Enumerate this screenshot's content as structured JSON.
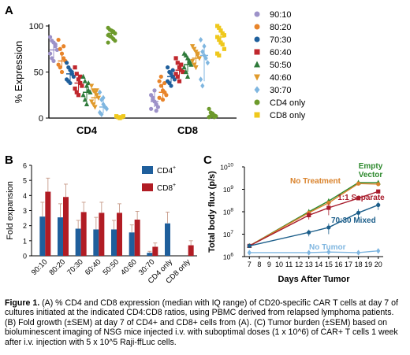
{
  "panel_letters": {
    "a": "A",
    "b": "B",
    "c": "C"
  },
  "caption": {
    "label": "Figure 1.",
    "text": "(A) % CD4 and CD8 expression (median with IQ range) of CD20-specific CAR T cells at day 7 of cultures initiated at the indicated CD4:CD8 ratios, using PBMC derived from relapsed lymphoma patients. (B) Fold growth (±SEM) at day 7 of CD4+ and CD8+ cells from (A). (C) Tumor burden (±SEM) based on bioluminescent imaging of NSG mice injected i.v. with suboptimal doses (1 x 10^6) of CAR+ T cells 1 week after i.v. injection with 5 x 10^5 Raji-ffLuc cells."
  },
  "chart_data": [
    {
      "panel": "A",
      "type": "scatter",
      "ylabel": "% Expression",
      "xlabel": "",
      "groups": [
        "CD4",
        "CD8"
      ],
      "ylim": [
        0,
        100
      ],
      "yticks": [
        "0",
        "50",
        "100"
      ],
      "legend_position": "right",
      "series": [
        {
          "name": "90:10",
          "color": "#9d92c9",
          "marker": "circle",
          "CD4": {
            "median": 74,
            "iqr": [
              65,
              82
            ],
            "points": [
              88,
              84,
              82,
              78,
              74,
              70,
              65,
              62,
              80
            ]
          },
          "CD8": {
            "median": 18,
            "iqr": [
              12,
              28
            ],
            "points": [
              25,
              20,
              18,
              15,
              12,
              10,
              22,
              30,
              8
            ]
          }
        },
        {
          "name": "80:20",
          "color": "#e8842a",
          "marker": "circle",
          "CD4": {
            "median": 62,
            "iqr": [
              55,
              70
            ],
            "points": [
              85,
              75,
              70,
              65,
              62,
              58,
              55,
              50,
              78
            ]
          },
          "CD8": {
            "median": 28,
            "iqr": [
              22,
              38
            ],
            "points": [
              40,
              35,
              30,
              28,
              25,
              22,
              45,
              20,
              38
            ]
          }
        },
        {
          "name": "70:30",
          "color": "#1f5f9c",
          "marker": "circle",
          "CD4": {
            "median": 48,
            "iqr": [
              40,
              55
            ],
            "points": [
              60,
              55,
              52,
              48,
              45,
              42,
              40,
              38,
              50
            ]
          },
          "CD8": {
            "median": 45,
            "iqr": [
              38,
              52
            ],
            "points": [
              55,
              50,
              48,
              45,
              42,
              40,
              38,
              35,
              52
            ]
          }
        },
        {
          "name": "60:40",
          "color": "#c0272d",
          "marker": "square",
          "CD4": {
            "median": 38,
            "iqr": [
              30,
              45
            ],
            "points": [
              55,
              48,
              42,
              38,
              35,
              32,
              28,
              25,
              45
            ]
          },
          "CD8": {
            "median": 52,
            "iqr": [
              45,
              58
            ],
            "points": [
              65,
              60,
              55,
              52,
              50,
              48,
              45,
              40,
              58
            ]
          }
        },
        {
          "name": "50:50",
          "color": "#2e7a3a",
          "marker": "triangle",
          "CD4": {
            "median": 28,
            "iqr": [
              20,
              35
            ],
            "points": [
              45,
              40,
              35,
              30,
              28,
              25,
              20,
              15,
              38
            ]
          },
          "CD8": {
            "median": 58,
            "iqr": [
              50,
              65
            ],
            "points": [
              70,
              68,
              65,
              60,
              58,
              55,
              50,
              45,
              62
            ]
          }
        },
        {
          "name": "40:60",
          "color": "#e09a2c",
          "marker": "triangle-down",
          "CD4": {
            "median": 22,
            "iqr": [
              15,
              28
            ],
            "points": [
              35,
              30,
              28,
              25,
              22,
              18,
              15,
              12,
              30
            ]
          },
          "CD8": {
            "median": 65,
            "iqr": [
              58,
              72
            ],
            "points": [
              78,
              75,
              72,
              68,
              65,
              62,
              58,
              55,
              70
            ]
          }
        },
        {
          "name": "30:70",
          "color": "#7fb6e0",
          "marker": "diamond",
          "CD4": {
            "median": 12,
            "iqr": [
              5,
              20
            ],
            "points": [
              28,
              20,
              15,
              12,
              10,
              6,
              4,
              22
            ]
          },
          "CD8": {
            "median": 68,
            "iqr": [
              40,
              78
            ],
            "points": [
              85,
              72,
              68,
              65,
              60,
              42,
              35,
              78
            ]
          }
        },
        {
          "name": "CD4 only",
          "color": "#6d9a2c",
          "marker": "circle",
          "CD4": {
            "median": 92,
            "iqr": [
              88,
              95
            ],
            "points": [
              98,
              96,
              95,
              94,
              92,
              90,
              89,
              88,
              86,
              84,
              82
            ]
          },
          "CD8": {
            "median": 3,
            "iqr": [
              1,
              5
            ],
            "points": [
              10,
              6,
              4,
              3,
              2,
              1,
              2,
              5,
              1
            ]
          }
        },
        {
          "name": "CD8 only",
          "color": "#efc81c",
          "marker": "square",
          "CD4": {
            "median": 1,
            "iqr": [
              0,
              2
            ],
            "points": [
              2,
              1,
              0,
              1,
              2
            ]
          },
          "CD8": {
            "median": 88,
            "iqr": [
              82,
              92
            ],
            "points": [
              100,
              98,
              95,
              92,
              90,
              88,
              85,
              82,
              80,
              75,
              70,
              68
            ]
          }
        }
      ]
    },
    {
      "panel": "B",
      "type": "bar",
      "ylabel": "Fold expansion",
      "ylim": [
        0,
        6
      ],
      "yticks": [
        "0",
        "1",
        "2",
        "3",
        "4",
        "5",
        "6"
      ],
      "categories": [
        "90:10",
        "80:20",
        "70:30",
        "60:40",
        "50:50",
        "40:60",
        "30:70",
        "CD4 only",
        "CD8 only"
      ],
      "series": [
        {
          "name": "CD4",
          "superscript": "+",
          "color": "#1f5f9c",
          "values": [
            2.6,
            2.55,
            1.8,
            1.75,
            1.75,
            1.55,
            0.2,
            2.15,
            null
          ],
          "errors": [
            0.95,
            0.9,
            0.55,
            0.8,
            0.6,
            0.5,
            0.1,
            0.75,
            null
          ]
        },
        {
          "name": "CD8",
          "superscript": "+",
          "color": "#b11c24",
          "values": [
            4.25,
            3.9,
            2.9,
            2.85,
            2.85,
            2.4,
            0.6,
            null,
            0.7
          ],
          "errors": [
            0.9,
            0.85,
            0.65,
            0.7,
            0.6,
            0.55,
            0.25,
            null,
            0.3
          ]
        }
      ]
    },
    {
      "panel": "C",
      "type": "line",
      "ylabel": "Total body flux (p/s)",
      "xlabel": "Days After Tumor",
      "x_ticks": [
        7,
        8,
        9,
        10,
        11,
        12,
        13,
        14,
        15,
        16,
        17,
        18,
        19,
        20
      ],
      "xlim": [
        6.5,
        20.5
      ],
      "yscale": "log",
      "ylim": [
        1000000,
        10000000000
      ],
      "ytick_exponents": [
        "6",
        "7",
        "8",
        "9",
        "10"
      ],
      "ytick_base": "10",
      "series": [
        {
          "name": "Empty Vector",
          "label_lines": [
            "Empty",
            "Vector"
          ],
          "color": "#2e8a2e",
          "marker": "triangle",
          "x": [
            7,
            13,
            15,
            18,
            20
          ],
          "y": [
            3000000,
            100000000,
            300000000,
            2000000000,
            2000000000
          ],
          "err": [
            0,
            20000000,
            60000000,
            0,
            0
          ]
        },
        {
          "name": "No Treatment",
          "label_lines": [
            "No  Treatment"
          ],
          "color": "#d9822b",
          "marker": "circle",
          "x": [
            7,
            13,
            15,
            18,
            20
          ],
          "y": [
            3000000,
            90000000,
            250000000,
            1800000000,
            1700000000
          ],
          "err": [
            0,
            20000000,
            50000000,
            0,
            0
          ]
        },
        {
          "name": "1:1 Separate",
          "label_lines": [
            "1:1  Separate"
          ],
          "color": "#a81c2c",
          "marker": "square",
          "x": [
            7,
            13,
            15,
            18,
            20
          ],
          "y": [
            3000000,
            70000000,
            150000000,
            400000000,
            800000000
          ],
          "err": [
            0,
            25000000,
            80000000,
            0,
            0
          ]
        },
        {
          "name": "70:30 Mixed",
          "label_lines": [
            "70:30 Mixed"
          ],
          "color": "#1c5e8a",
          "marker": "circle",
          "x": [
            7,
            13,
            15,
            18,
            20
          ],
          "y": [
            3000000,
            12000000,
            20000000,
            90000000,
            200000000
          ],
          "err": [
            0,
            4000000,
            10000000,
            40000000,
            80000000
          ]
        },
        {
          "name": "No Tumor",
          "label_lines": [
            "No  Tumor"
          ],
          "color": "#7fb6e0",
          "marker": "diamond",
          "x": [
            7,
            13,
            15,
            18,
            20
          ],
          "y": [
            1500000,
            1500000,
            1600000,
            1500000,
            1800000
          ],
          "err": [
            0,
            0,
            0,
            0,
            0
          ]
        }
      ]
    }
  ]
}
